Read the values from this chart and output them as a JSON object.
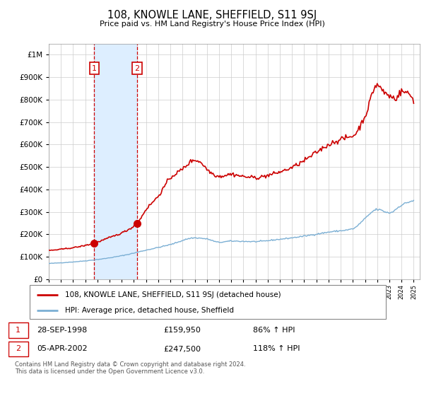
{
  "title": "108, KNOWLE LANE, SHEFFIELD, S11 9SJ",
  "subtitle": "Price paid vs. HM Land Registry's House Price Index (HPI)",
  "ytick_values": [
    0,
    100000,
    200000,
    300000,
    400000,
    500000,
    600000,
    700000,
    800000,
    900000,
    1000000
  ],
  "ylim": [
    0,
    1050000
  ],
  "xlim_start": 1995.0,
  "xlim_end": 2025.5,
  "purchase1": {
    "date": 1998.74,
    "price": 159950,
    "label": "1"
  },
  "purchase2": {
    "date": 2002.26,
    "price": 247500,
    "label": "2"
  },
  "legend_property": "108, KNOWLE LANE, SHEFFIELD, S11 9SJ (detached house)",
  "legend_hpi": "HPI: Average price, detached house, Sheffield",
  "table_row1": [
    "1",
    "28-SEP-1998",
    "£159,950",
    "86% ↑ HPI"
  ],
  "table_row2": [
    "2",
    "05-APR-2002",
    "£247,500",
    "118% ↑ HPI"
  ],
  "footer": "Contains HM Land Registry data © Crown copyright and database right 2024.\nThis data is licensed under the Open Government Licence v3.0.",
  "property_color": "#cc0000",
  "hpi_color": "#7bafd4",
  "shading_color": "#ddeeff",
  "vline_color": "#cc0000",
  "background_color": "#ffffff",
  "grid_color": "#cccccc",
  "label_border_color": "#cc0000"
}
